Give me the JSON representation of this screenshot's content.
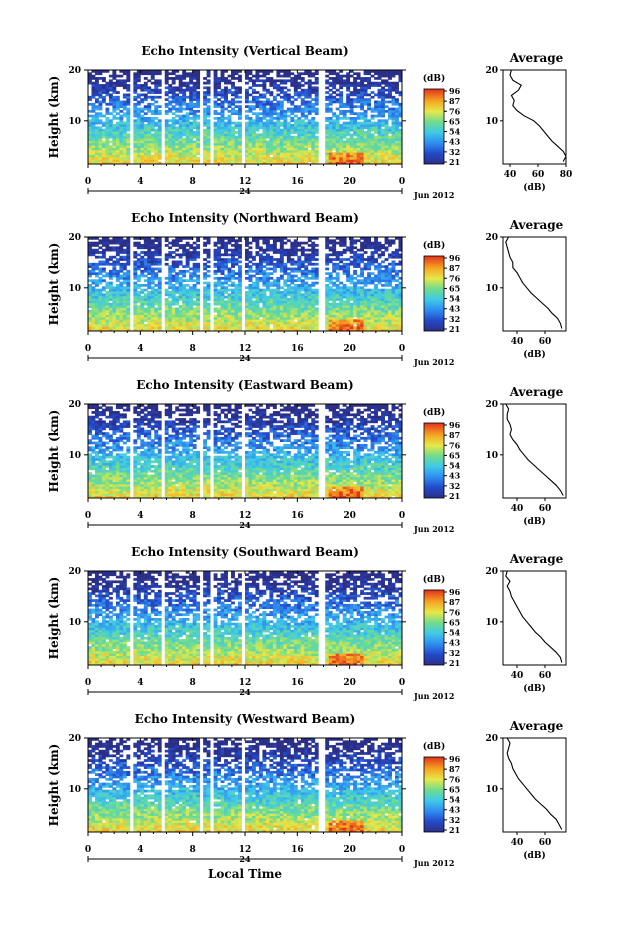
{
  "figure": {
    "xlabel": "Local Time",
    "date_label": "Jun 2012",
    "day_label": "24",
    "ylabel": "Height (km)",
    "colorbar_unit": "(dB)",
    "colorbar_ticks": [
      "96",
      "87",
      "76",
      "65",
      "54",
      "43",
      "32",
      "21"
    ],
    "profile_title": "Average",
    "profile_xlabel": "(dB)"
  },
  "chart_data": [
    {
      "type": "heatmap",
      "title": "Echo Intensity (Vertical Beam)",
      "xlabel": "Local Time",
      "ylabel": "Height (km)",
      "x_ticks": [
        "0",
        "4",
        "8",
        "12",
        "16",
        "20",
        "0"
      ],
      "y_ticks": [
        "20",
        "10"
      ],
      "xlim": [
        0,
        24
      ],
      "ylim": [
        1.5,
        20
      ],
      "colorbar": {
        "unit": "dB",
        "range": [
          21,
          96
        ],
        "ticks": [
          96,
          87,
          76,
          65,
          54,
          43,
          32,
          21
        ]
      },
      "data_gaps_hours": [
        [
          3.2,
          3.5
        ],
        [
          5.6,
          5.9
        ],
        [
          8.6,
          8.9
        ],
        [
          9.4,
          9.7
        ],
        [
          11.8,
          12.0
        ],
        [
          17.6,
          18.0
        ]
      ],
      "profile": {
        "title": "Average",
        "xlabel": "(dB)",
        "x_ticks": [
          "40",
          "60",
          "80"
        ],
        "xlim": [
          35,
          80
        ],
        "heights": [
          2,
          3,
          4,
          5,
          6,
          7,
          8,
          9,
          10,
          11,
          12,
          13,
          14,
          15,
          16,
          17,
          18,
          19,
          20
        ],
        "values": [
          78,
          80,
          78,
          74,
          70,
          67,
          64,
          61,
          57,
          50,
          45,
          42,
          43,
          41,
          46,
          48,
          42,
          40,
          41
        ]
      }
    },
    {
      "type": "heatmap",
      "title": "Echo Intensity (Northward Beam)",
      "xlabel": "Local Time",
      "ylabel": "Height (km)",
      "x_ticks": [
        "0",
        "4",
        "8",
        "12",
        "16",
        "20",
        "0"
      ],
      "y_ticks": [
        "20",
        "10"
      ],
      "xlim": [
        0,
        24
      ],
      "ylim": [
        1.5,
        20
      ],
      "colorbar": {
        "unit": "dB",
        "range": [
          21,
          96
        ],
        "ticks": [
          96,
          87,
          76,
          65,
          54,
          43,
          32,
          21
        ]
      },
      "data_gaps_hours": [
        [
          3.2,
          3.5
        ],
        [
          5.6,
          5.9
        ],
        [
          8.6,
          8.9
        ],
        [
          9.4,
          9.7
        ],
        [
          11.8,
          12.0
        ],
        [
          17.6,
          18.0
        ]
      ],
      "profile": {
        "title": "Average",
        "xlabel": "(dB)",
        "x_ticks": [
          "40",
          "60"
        ],
        "xlim": [
          30,
          75
        ],
        "heights": [
          2,
          3,
          4,
          5,
          6,
          7,
          8,
          9,
          10,
          11,
          12,
          13,
          14,
          15,
          16,
          17,
          18,
          19,
          20
        ],
        "values": [
          72,
          71,
          69,
          65,
          62,
          58,
          54,
          50,
          47,
          44,
          42,
          40,
          37,
          37,
          35,
          34,
          33,
          32,
          34
        ]
      }
    },
    {
      "type": "heatmap",
      "title": "Echo Intensity (Eastward Beam)",
      "xlabel": "Local Time",
      "ylabel": "Height (km)",
      "x_ticks": [
        "0",
        "4",
        "8",
        "12",
        "16",
        "20",
        "0"
      ],
      "y_ticks": [
        "20",
        "10"
      ],
      "xlim": [
        0,
        24
      ],
      "ylim": [
        1.5,
        20
      ],
      "colorbar": {
        "unit": "dB",
        "range": [
          21,
          96
        ],
        "ticks": [
          96,
          87,
          76,
          65,
          54,
          43,
          32,
          21
        ]
      },
      "data_gaps_hours": [
        [
          3.2,
          3.5
        ],
        [
          5.6,
          5.9
        ],
        [
          8.6,
          8.9
        ],
        [
          9.4,
          9.7
        ],
        [
          11.8,
          12.0
        ],
        [
          17.6,
          18.0
        ]
      ],
      "profile": {
        "title": "Average",
        "xlabel": "(dB)",
        "x_ticks": [
          "40",
          "60"
        ],
        "xlim": [
          30,
          75
        ],
        "heights": [
          2,
          3,
          4,
          5,
          6,
          7,
          8,
          9,
          10,
          11,
          12,
          13,
          14,
          15,
          16,
          17,
          18,
          19,
          20
        ],
        "values": [
          73,
          71,
          68,
          64,
          60,
          56,
          52,
          48,
          45,
          42,
          40,
          37,
          35,
          36,
          35,
          33,
          33,
          34,
          32
        ]
      }
    },
    {
      "type": "heatmap",
      "title": "Echo Intensity (Southward Beam)",
      "xlabel": "Local Time",
      "ylabel": "Height (km)",
      "x_ticks": [
        "0",
        "4",
        "8",
        "12",
        "16",
        "20",
        "0"
      ],
      "y_ticks": [
        "20",
        "10"
      ],
      "xlim": [
        0,
        24
      ],
      "ylim": [
        1.5,
        20
      ],
      "colorbar": {
        "unit": "dB",
        "range": [
          21,
          96
        ],
        "ticks": [
          96,
          87,
          76,
          65,
          54,
          43,
          32,
          21
        ]
      },
      "data_gaps_hours": [
        [
          3.2,
          3.5
        ],
        [
          5.6,
          5.9
        ],
        [
          8.6,
          8.9
        ],
        [
          9.4,
          9.7
        ],
        [
          11.8,
          12.0
        ],
        [
          17.6,
          18.0
        ]
      ],
      "profile": {
        "title": "Average",
        "xlabel": "(dB)",
        "x_ticks": [
          "40",
          "60"
        ],
        "xlim": [
          30,
          75
        ],
        "heights": [
          2,
          3,
          4,
          5,
          6,
          7,
          8,
          9,
          10,
          11,
          12,
          13,
          14,
          15,
          16,
          17,
          18,
          19,
          20
        ],
        "values": [
          72,
          71,
          68,
          64,
          60,
          57,
          53,
          50,
          47,
          44,
          42,
          40,
          38,
          36,
          35,
          33,
          35,
          32,
          33
        ]
      }
    },
    {
      "type": "heatmap",
      "title": "Echo Intensity (Westward Beam)",
      "xlabel": "Local Time",
      "ylabel": "Height (km)",
      "x_ticks": [
        "0",
        "4",
        "8",
        "12",
        "16",
        "20",
        "0"
      ],
      "y_ticks": [
        "20",
        "10"
      ],
      "xlim": [
        0,
        24
      ],
      "ylim": [
        1.5,
        20
      ],
      "colorbar": {
        "unit": "dB",
        "range": [
          21,
          96
        ],
        "ticks": [
          96,
          87,
          76,
          65,
          54,
          43,
          32,
          21
        ]
      },
      "data_gaps_hours": [
        [
          3.2,
          3.5
        ],
        [
          5.6,
          5.9
        ],
        [
          8.6,
          8.9
        ],
        [
          9.4,
          9.7
        ],
        [
          11.8,
          12.0
        ],
        [
          17.6,
          18.0
        ]
      ],
      "profile": {
        "title": "Average",
        "xlabel": "(dB)",
        "x_ticks": [
          "40",
          "60"
        ],
        "xlim": [
          30,
          75
        ],
        "heights": [
          2,
          3,
          4,
          5,
          6,
          7,
          8,
          9,
          10,
          11,
          12,
          13,
          14,
          15,
          16,
          17,
          18,
          19,
          20
        ],
        "values": [
          72,
          70,
          68,
          64,
          61,
          57,
          53,
          50,
          47,
          44,
          41,
          39,
          37,
          36,
          34,
          33,
          34,
          35,
          33
        ]
      }
    }
  ]
}
